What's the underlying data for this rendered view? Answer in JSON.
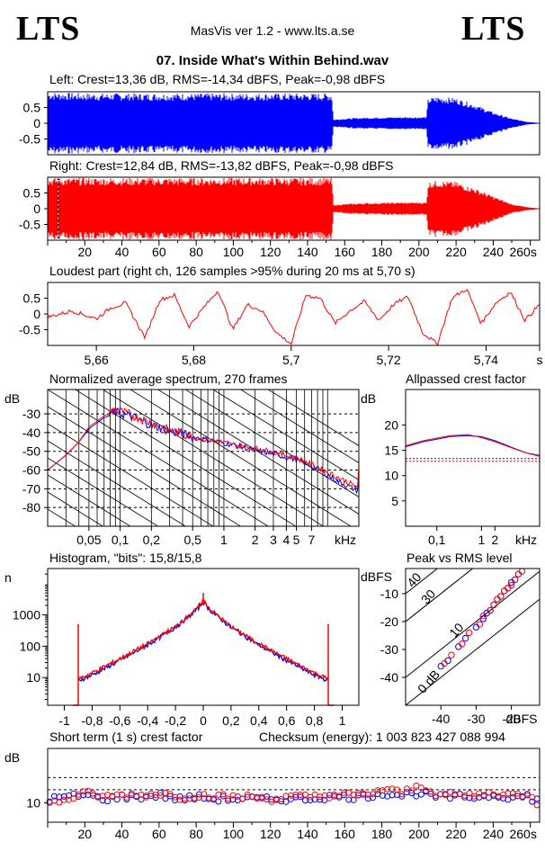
{
  "header": {
    "logo_left": "LTS",
    "logo_right": "LTS",
    "app_title": "MasVis ver 1.2 - www.lts.a.se",
    "file_name": "07. Inside What's Within Behind.wav"
  },
  "colors": {
    "left": "#0000ff",
    "right": "#ff0000",
    "frame": "#000000",
    "grid": "#000000"
  },
  "chart_data": [
    {
      "id": "left",
      "type": "line",
      "title": "Left: Crest=13,36 dB, RMS=-14,34 dBFS, Peak=-0,98 dBFS",
      "yticks": [
        "0.5",
        "0",
        "-0.5"
      ],
      "ytick_values": [
        0.5,
        0,
        -0.5
      ],
      "ylim": [
        -1,
        1
      ],
      "xlim": [
        0,
        265
      ],
      "envelope": {
        "x": [
          0,
          5,
          20,
          60,
          100,
          140,
          150,
          153,
          154,
          160,
          170,
          190,
          204,
          205,
          210,
          220,
          230,
          240,
          250,
          258,
          265
        ],
        "amp": [
          0.98,
          0.98,
          0.95,
          0.95,
          0.95,
          0.95,
          0.95,
          0.95,
          0.12,
          0.15,
          0.18,
          0.2,
          0.2,
          0.8,
          0.85,
          0.8,
          0.6,
          0.35,
          0.15,
          0.05,
          0.01
        ]
      }
    },
    {
      "id": "right",
      "type": "line",
      "title": "Right: Crest=12,84 dB, RMS=-13,82 dBFS, Peak=-0,98 dBFS",
      "yticks": [
        "0.5",
        "0",
        "-0.5"
      ],
      "ytick_values": [
        0.5,
        0,
        -0.5
      ],
      "ylim": [
        -1,
        1
      ],
      "xlim": [
        0,
        265
      ],
      "xticks": [
        "20",
        "40",
        "60",
        "80",
        "100",
        "120",
        "140",
        "160",
        "180",
        "200",
        "220",
        "240",
        "260s"
      ],
      "xtick_values": [
        20,
        40,
        60,
        80,
        100,
        120,
        140,
        160,
        180,
        200,
        220,
        240,
        260
      ],
      "marker_x": 5.7,
      "envelope": {
        "x": [
          0,
          5,
          20,
          60,
          100,
          140,
          150,
          153,
          154,
          160,
          170,
          190,
          204,
          205,
          210,
          220,
          230,
          240,
          250,
          258,
          265
        ],
        "amp": [
          0.98,
          0.98,
          0.98,
          0.98,
          0.98,
          0.98,
          0.98,
          0.98,
          0.12,
          0.15,
          0.18,
          0.2,
          0.2,
          0.85,
          0.9,
          0.85,
          0.65,
          0.4,
          0.15,
          0.05,
          0.01
        ]
      }
    },
    {
      "id": "loudest",
      "type": "line",
      "title": "Loudest part (right ch, 126 samples >95% during 20 ms at 5,70 s)",
      "yticks": [
        "0.5",
        "0",
        "-0.5"
      ],
      "ytick_values": [
        0.5,
        0,
        -0.5
      ],
      "ylim": [
        -1,
        1
      ],
      "xlim": [
        5.65,
        5.751
      ],
      "xticks": [
        "5,66",
        "5,68",
        "5,7",
        "5,72",
        "5,74",
        "s"
      ],
      "xtick_values": [
        5.66,
        5.68,
        5.7,
        5.72,
        5.74,
        5.751
      ],
      "series": [
        {
          "name": "right",
          "x": [
            5.65,
            5.655,
            5.66,
            5.663,
            5.666,
            5.67,
            5.673,
            5.676,
            5.679,
            5.682,
            5.685,
            5.688,
            5.691,
            5.694,
            5.697,
            5.7,
            5.703,
            5.706,
            5.709,
            5.712,
            5.715,
            5.718,
            5.721,
            5.724,
            5.727,
            5.73,
            5.733,
            5.736,
            5.739,
            5.742,
            5.745,
            5.748,
            5.751
          ],
          "values": [
            -0.1,
            0.1,
            -0.15,
            0.2,
            0.35,
            -0.75,
            0.45,
            0.6,
            -0.4,
            0.2,
            0.75,
            -0.5,
            0.3,
            0.1,
            -0.6,
            -0.95,
            0.6,
            0.5,
            -0.3,
            0.1,
            0.4,
            -0.2,
            0.3,
            0.55,
            -0.6,
            -0.95,
            0.5,
            0.8,
            -0.3,
            0.35,
            0.7,
            -0.2,
            0.3
          ]
        }
      ]
    },
    {
      "id": "spectrum",
      "type": "line",
      "title": "Normalized average spectrum, 270 frames",
      "ylabel": "dB",
      "xlabel": "kHz",
      "yticks": [
        "-30",
        "-40",
        "-50",
        "-60",
        "-70",
        "-80"
      ],
      "ytick_values": [
        -30,
        -40,
        -50,
        -60,
        -70,
        -80
      ],
      "ylim": [
        -90,
        -17
      ],
      "xscale": "log",
      "xlim": [
        0.02,
        20
      ],
      "xticks": [
        "0,05",
        "0,1",
        "0,2",
        "0,5",
        "1",
        "2",
        "3",
        "4",
        "5",
        "7"
      ],
      "xtick_values": [
        0.05,
        0.1,
        0.2,
        0.5,
        1,
        2,
        3,
        4,
        5,
        7
      ],
      "series": [
        {
          "name": "left",
          "x": [
            0.02,
            0.03,
            0.04,
            0.05,
            0.07,
            0.09,
            0.12,
            0.15,
            0.2,
            0.3,
            0.5,
            0.8,
            1.2,
            2,
            3,
            5,
            8,
            12,
            20
          ],
          "values": [
            -60,
            -52,
            -45,
            -38,
            -32,
            -30,
            -32,
            -34,
            -37,
            -40,
            -43,
            -45,
            -47,
            -50,
            -52,
            -55,
            -60,
            -66,
            -72
          ]
        },
        {
          "name": "right",
          "x": [
            0.02,
            0.03,
            0.04,
            0.05,
            0.07,
            0.09,
            0.12,
            0.15,
            0.2,
            0.3,
            0.5,
            0.8,
            1.2,
            2,
            3,
            5,
            8,
            12,
            20
          ],
          "values": [
            -60,
            -52,
            -45,
            -37,
            -31,
            -29,
            -31,
            -33,
            -36,
            -40,
            -43,
            -45,
            -47,
            -49,
            -51,
            -54,
            -59,
            -64,
            -70
          ]
        }
      ]
    },
    {
      "id": "allpassed",
      "type": "line",
      "title": "Allpassed crest factor",
      "ylabel": "dB",
      "xlabel": "kHz",
      "yticks": [
        "20",
        "15",
        "10",
        "5"
      ],
      "ytick_values": [
        20,
        15,
        10,
        5
      ],
      "ylim": [
        0,
        27
      ],
      "xscale": "log",
      "xlim": [
        0.02,
        20
      ],
      "xticks": [
        "0,1",
        "1",
        "2"
      ],
      "xtick_values": [
        0.1,
        1,
        2
      ],
      "reference_lines": [
        13.36,
        12.84
      ],
      "series": [
        {
          "name": "left",
          "x": [
            0.02,
            0.05,
            0.1,
            0.2,
            0.5,
            1,
            2,
            5,
            10,
            20
          ],
          "values": [
            15.7,
            16.7,
            17.2,
            17.7,
            17.9,
            17.7,
            16.9,
            15.5,
            14.5,
            14.0
          ]
        },
        {
          "name": "right",
          "x": [
            0.02,
            0.05,
            0.1,
            0.2,
            0.5,
            1,
            2,
            5,
            10,
            20
          ],
          "values": [
            15.9,
            16.9,
            17.4,
            17.9,
            18.1,
            17.5,
            16.7,
            15.4,
            14.5,
            13.8
          ]
        }
      ]
    },
    {
      "id": "histogram",
      "type": "line",
      "title": "Histogram, \"bits\": 15,8/15,8",
      "ylabel": "n",
      "yscale": "log",
      "yticks": [
        "1000",
        "100",
        "10"
      ],
      "ytick_values": [
        1000,
        100,
        10
      ],
      "ylim": [
        1.3,
        30000
      ],
      "xlim": [
        -1.12,
        1.12
      ],
      "xticks": [
        "-1",
        "-0,8",
        "-0,6",
        "-0,4",
        "-0,2",
        "0",
        "0,2",
        "0,4",
        "0,6",
        "0,8",
        "1"
      ],
      "xtick_values": [
        -1,
        -0.8,
        -0.6,
        -0.4,
        -0.2,
        0,
        0.2,
        0.4,
        0.6,
        0.8,
        1
      ],
      "series": [
        {
          "name": "left",
          "x": [
            -0.9,
            -0.8,
            -0.6,
            -0.4,
            -0.2,
            -0.05,
            0,
            0.05,
            0.2,
            0.4,
            0.6,
            0.8,
            0.9
          ],
          "values": [
            8,
            12,
            35,
            110,
            400,
            1400,
            2600,
            1400,
            400,
            110,
            35,
            12,
            8
          ]
        },
        {
          "name": "right",
          "x": [
            -0.9,
            -0.8,
            -0.6,
            -0.4,
            -0.2,
            -0.05,
            0,
            0.05,
            0.2,
            0.4,
            0.6,
            0.8,
            0.9
          ],
          "values": [
            9,
            14,
            40,
            120,
            420,
            1500,
            3000,
            1500,
            420,
            120,
            40,
            14,
            9
          ]
        }
      ],
      "clip_spikes": [
        -0.9,
        0.9
      ]
    },
    {
      "id": "peak-vs-rms",
      "type": "scatter",
      "title": "Peak vs RMS level",
      "ylabel": "dBFS",
      "xlabel": "dBFS",
      "yticks": [
        "-10",
        "-20",
        "-30",
        "-40"
      ],
      "ytick_values": [
        -10,
        -20,
        -30,
        -40
      ],
      "ylim": [
        -50,
        -1
      ],
      "xticks": [
        "-40",
        "-30",
        "-20"
      ],
      "xtick_values": [
        -40,
        -30,
        -20
      ],
      "xlim": [
        -50,
        -12
      ],
      "diagonals": [
        "40",
        "30",
        "10",
        "0 dB"
      ],
      "diagonal_values": [
        40,
        30,
        10,
        0
      ],
      "series": [
        {
          "name": "left",
          "x": [
            -40,
            -38,
            -35,
            -33,
            -30,
            -28,
            -27,
            -26,
            -25,
            -24,
            -23,
            -22,
            -21,
            -20,
            -19,
            -18
          ],
          "y": [
            -36,
            -34,
            -29,
            -26,
            -22,
            -19,
            -17,
            -16,
            -14,
            -12,
            -11,
            -9,
            -8,
            -6,
            -5,
            -3
          ]
        },
        {
          "name": "right",
          "x": [
            -39,
            -37,
            -34,
            -32,
            -29,
            -28,
            -26,
            -25,
            -24,
            -23,
            -22,
            -21,
            -20,
            -19,
            -18,
            -17
          ],
          "y": [
            -35,
            -32,
            -28,
            -24,
            -21,
            -18,
            -16,
            -14,
            -12,
            -11,
            -9,
            -8,
            -7,
            -5,
            -3,
            -2
          ]
        }
      ]
    },
    {
      "id": "crest-short",
      "type": "scatter",
      "title": "Short term (1 s) crest factor",
      "checksum_label": "Checksum (energy):  1 003 823 427 088 994",
      "ylabel": "dB",
      "yticks": [
        "10"
      ],
      "ytick_values": [
        10
      ],
      "ylim": [
        5,
        24
      ],
      "xlim": [
        0,
        265
      ],
      "xticks": [
        "20",
        "40",
        "60",
        "80",
        "100",
        "120",
        "140",
        "160",
        "180",
        "200",
        "220",
        "240",
        "260s"
      ],
      "xtick_values": [
        20,
        40,
        60,
        80,
        100,
        120,
        140,
        160,
        180,
        200,
        220,
        240,
        260
      ],
      "reference_lines": [
        13.36,
        16.5
      ],
      "series": [
        {
          "name": "left",
          "x": [
            2,
            10,
            20,
            30,
            40,
            50,
            60,
            70,
            80,
            90,
            100,
            110,
            120,
            130,
            140,
            150,
            160,
            170,
            180,
            190,
            200,
            210,
            220,
            230,
            240,
            250,
            260
          ],
          "values": [
            11,
            11.5,
            12,
            11,
            11.5,
            11.5,
            12,
            11,
            11.5,
            11,
            11,
            11,
            10.8,
            11,
            11,
            11.5,
            11.5,
            11.5,
            12.5,
            12,
            12.5,
            11.5,
            11.5,
            11.5,
            12,
            11.5,
            11.5
          ]
        },
        {
          "name": "right",
          "x": [
            3,
            11,
            21,
            31,
            41,
            51,
            61,
            71,
            81,
            91,
            101,
            111,
            121,
            131,
            141,
            151,
            161,
            171,
            181,
            191,
            201,
            211,
            221,
            231,
            241,
            251,
            261
          ],
          "values": [
            10,
            11,
            12.5,
            11.5,
            12,
            12,
            12.5,
            11.5,
            12,
            11.5,
            11.5,
            11.5,
            11,
            11.5,
            11.5,
            12,
            12,
            12,
            13.5,
            12.5,
            14.5,
            12,
            12,
            12,
            12.5,
            12,
            12
          ]
        }
      ]
    }
  ]
}
